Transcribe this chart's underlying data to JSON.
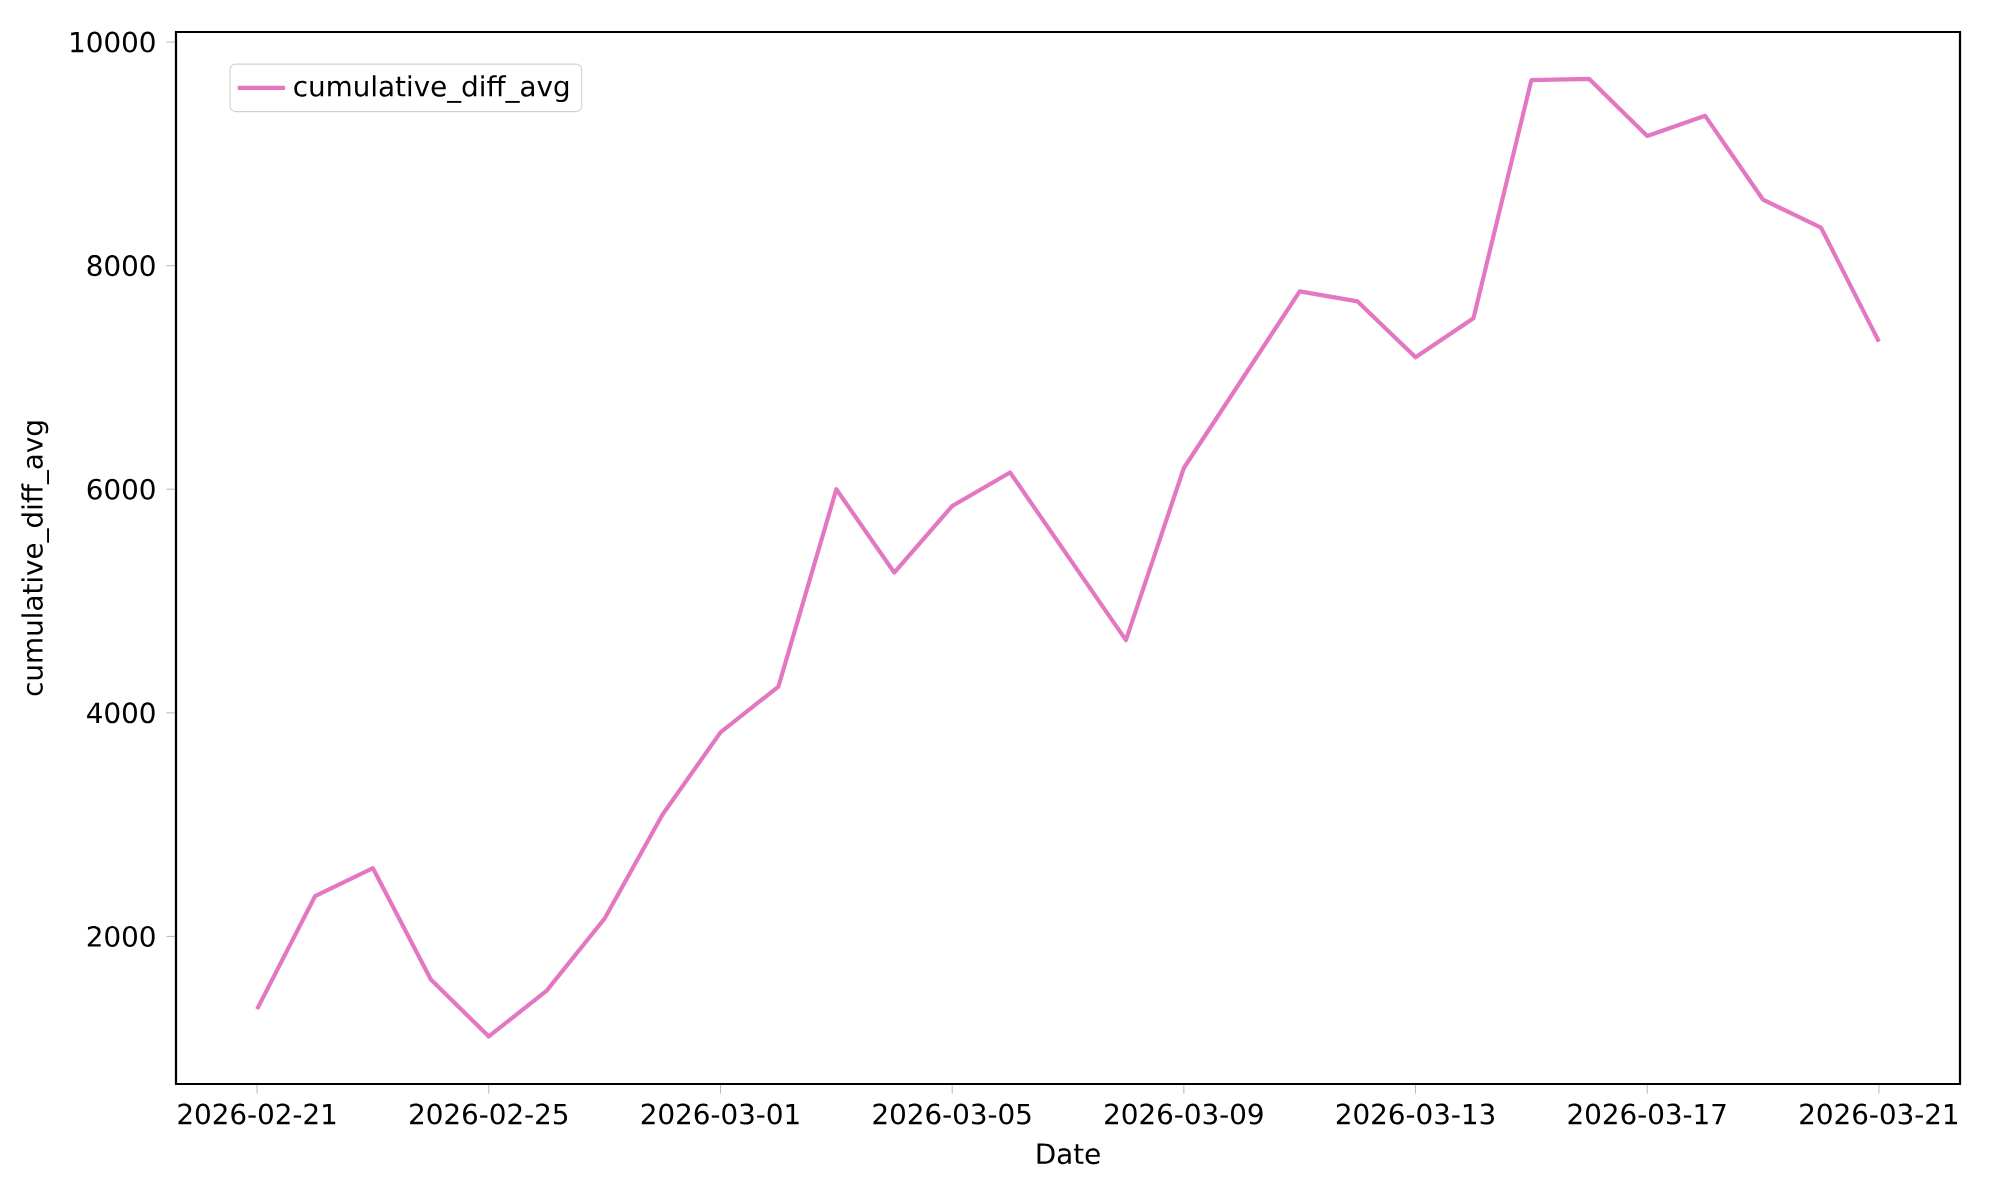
{
  "chart_data": {
    "type": "line",
    "xlabel": "Date",
    "ylabel": "cumulative_diff_avg",
    "x": [
      "2026-02-21",
      "2026-02-22",
      "2026-02-23",
      "2026-02-24",
      "2026-02-25",
      "2026-02-26",
      "2026-02-27",
      "2026-02-28",
      "2026-03-01",
      "2026-03-02",
      "2026-03-03",
      "2026-03-04",
      "2026-03-05",
      "2026-03-06",
      "2026-03-08",
      "2026-03-09",
      "2026-03-11",
      "2026-03-12",
      "2026-03-13",
      "2026-03-14",
      "2026-03-15",
      "2026-03-16",
      "2026-03-17",
      "2026-03-18",
      "2026-03-19",
      "2026-03-20",
      "2026-03-21"
    ],
    "series": [
      {
        "name": "cumulative_diff_avg",
        "color": "#e377c2",
        "values": [
          1350,
          2360,
          2610,
          1615,
          1105,
          1515,
          2160,
          3090,
          3825,
          4235,
          6000,
          5255,
          5850,
          6150,
          4650,
          6190,
          7770,
          7680,
          7180,
          7530,
          9660,
          9670,
          9160,
          9340,
          8590,
          8340,
          7320
        ]
      }
    ],
    "xlim": [
      "2026-02-19T14:24",
      "2026-03-22T09:36"
    ],
    "xticks": [
      "2026-02-21",
      "2026-02-25",
      "2026-03-01",
      "2026-03-05",
      "2026-03-09",
      "2026-03-13",
      "2026-03-17",
      "2026-03-21"
    ],
    "ylim": [
      680,
      10090
    ],
    "yticks": [
      2000,
      4000,
      6000,
      8000,
      10000
    ],
    "legend": "top left"
  }
}
